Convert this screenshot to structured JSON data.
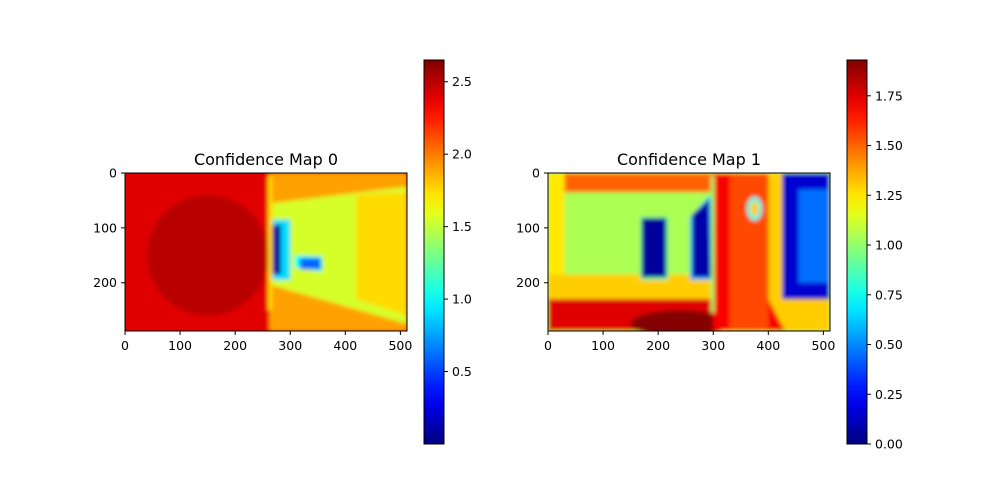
{
  "chart_data": [
    {
      "type": "heatmap",
      "title": "Confidence Map 0",
      "colormap": "jet",
      "image_size": {
        "width": 512,
        "height": 288
      },
      "xlim": [
        0,
        512
      ],
      "ylim": [
        288,
        0
      ],
      "x_ticks": [
        0,
        100,
        200,
        300,
        400,
        500
      ],
      "y_ticks": [
        0,
        100,
        200
      ],
      "colorbar": {
        "min": 0.0,
        "max": 2.65,
        "ticks": [
          0.5,
          1.0,
          1.5,
          2.0,
          2.5
        ],
        "tick_labels": [
          "0.5",
          "1.0",
          "1.5",
          "2.0",
          "2.5"
        ]
      },
      "base_value": 2.4,
      "regions": [
        {
          "shape": "ellipse",
          "cx": 150,
          "cy": 150,
          "rx": 110,
          "ry": 110,
          "value": 2.5
        },
        {
          "shape": "rect",
          "x0": 262,
          "y0": 0,
          "x1": 512,
          "y1": 288,
          "value": 1.9
        },
        {
          "shape": "poly",
          "points": [
            [
              268,
              55
            ],
            [
              512,
              25
            ],
            [
              512,
              275
            ],
            [
              268,
              205
            ]
          ],
          "value": 1.55
        },
        {
          "shape": "poly",
          "points": [
            [
              420,
              40
            ],
            [
              512,
              35
            ],
            [
              512,
              260
            ],
            [
              420,
              230
            ]
          ],
          "value": 1.75
        },
        {
          "shape": "rect",
          "x0": 268,
          "y0": 85,
          "x1": 300,
          "y1": 195,
          "value": 0.9
        },
        {
          "shape": "rect",
          "x0": 268,
          "y0": 95,
          "x1": 283,
          "y1": 185,
          "value": 0.08
        },
        {
          "shape": "poly",
          "points": [
            [
              308,
              150
            ],
            [
              358,
              152
            ],
            [
              358,
              180
            ],
            [
              308,
              172
            ]
          ],
          "value": 1.0
        },
        {
          "shape": "rect",
          "x0": 318,
          "y0": 155,
          "x1": 356,
          "y1": 176,
          "value": 0.6
        },
        {
          "shape": "rect",
          "x0": 260,
          "y0": 5,
          "x1": 266,
          "y1": 250,
          "value": 1.7
        }
      ]
    },
    {
      "type": "heatmap",
      "title": "Confidence Map 1",
      "colormap": "jet",
      "image_size": {
        "width": 512,
        "height": 288
      },
      "xlim": [
        0,
        512
      ],
      "ylim": [
        288,
        0
      ],
      "x_ticks": [
        0,
        100,
        200,
        300,
        400,
        500
      ],
      "y_ticks": [
        0,
        100,
        200
      ],
      "colorbar": {
        "min": 0.0,
        "max": 1.93,
        "ticks": [
          0.0,
          0.25,
          0.5,
          0.75,
          1.0,
          1.25,
          1.5,
          1.75
        ],
        "tick_labels": [
          "0.00",
          "0.25",
          "0.50",
          "0.75",
          "1.00",
          "1.25",
          "1.50",
          "1.75"
        ]
      },
      "base_value": 1.05,
      "regions": [
        {
          "shape": "rect",
          "x0": 0,
          "y0": 0,
          "x1": 512,
          "y1": 35,
          "value": 1.5
        },
        {
          "shape": "rect",
          "x0": 0,
          "y0": 0,
          "x1": 30,
          "y1": 288,
          "value": 1.25
        },
        {
          "shape": "rect",
          "x0": 0,
          "y0": 185,
          "x1": 512,
          "y1": 240,
          "value": 1.3
        },
        {
          "shape": "rect",
          "x0": 0,
          "y0": 230,
          "x1": 512,
          "y1": 288,
          "value": 1.75
        },
        {
          "shape": "ellipse",
          "cx": 240,
          "cy": 275,
          "rx": 90,
          "ry": 25,
          "value": 1.92
        },
        {
          "shape": "rect",
          "x0": 300,
          "y0": 0,
          "x1": 420,
          "y1": 288,
          "value": 1.7
        },
        {
          "shape": "rect",
          "x0": 330,
          "y0": 0,
          "x1": 400,
          "y1": 288,
          "value": 1.55
        },
        {
          "shape": "poly",
          "points": [
            [
              400,
              0
            ],
            [
              512,
              0
            ],
            [
              512,
              288
            ],
            [
              430,
              288
            ],
            [
              400,
              230
            ]
          ],
          "value": 1.3
        },
        {
          "shape": "rect",
          "x0": 425,
          "y0": 0,
          "x1": 512,
          "y1": 230,
          "value": 0.15
        },
        {
          "shape": "rect",
          "x0": 455,
          "y0": 30,
          "x1": 510,
          "y1": 200,
          "value": 0.45
        },
        {
          "shape": "rect",
          "x0": 168,
          "y0": 80,
          "x1": 218,
          "y1": 195,
          "value": 0.9
        },
        {
          "shape": "rect",
          "x0": 170,
          "y0": 82,
          "x1": 215,
          "y1": 190,
          "value": 0.05
        },
        {
          "shape": "poly",
          "points": [
            [
              258,
              80
            ],
            [
              295,
              40
            ],
            [
              300,
              195
            ],
            [
              258,
              195
            ]
          ],
          "value": 0.6
        },
        {
          "shape": "poly",
          "points": [
            [
              262,
              75
            ],
            [
              293,
              48
            ],
            [
              296,
              190
            ],
            [
              262,
              190
            ]
          ],
          "value": 0.08
        },
        {
          "shape": "ellipse",
          "cx": 375,
          "cy": 65,
          "rx": 14,
          "ry": 22,
          "value": 0.75
        },
        {
          "shape": "ellipse",
          "cx": 375,
          "cy": 65,
          "rx": 8,
          "ry": 14,
          "value": 1.3
        },
        {
          "shape": "rect",
          "x0": 296,
          "y0": 5,
          "x1": 302,
          "y1": 255,
          "value": 1.0
        }
      ]
    }
  ]
}
